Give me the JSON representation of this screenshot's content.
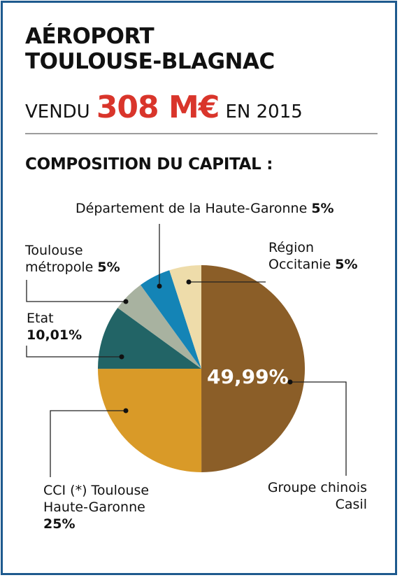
{
  "header": {
    "title_line1": "AÉROPORT",
    "title_line2": "TOULOUSE-BLAGNAC",
    "sold_prefix": "VENDU",
    "sold_amount": "308 M€",
    "sold_suffix": "EN 2015",
    "subtitle": "COMPOSITION DU CAPITAL :"
  },
  "colors": {
    "frame": "#1e5a8e",
    "accent": "#d9352b"
  },
  "chart_data": {
    "type": "pie",
    "title": "COMPOSITION DU CAPITAL :",
    "slices": [
      {
        "label_lines": [
          "Groupe chinois",
          "Casil"
        ],
        "value_text": "49,99%",
        "value": 49.99,
        "color": "#8b5e28"
      },
      {
        "label_lines": [
          "CCI (*) Toulouse",
          "Haute-Garonne"
        ],
        "value_text": "25%",
        "value": 25,
        "color": "#d99a28"
      },
      {
        "label_lines": [
          "Etat"
        ],
        "value_text": "10,01%",
        "value": 10.01,
        "color": "#226466"
      },
      {
        "label_lines": [
          "Toulouse",
          "métropole"
        ],
        "value_text": "5%",
        "value": 5,
        "color": "#a8b2a0"
      },
      {
        "label_lines": [
          "Département de la Haute-Garonne"
        ],
        "value_text": "5%",
        "value": 5,
        "color": "#1484b6"
      },
      {
        "label_lines": [
          "Région",
          "Occitanie"
        ],
        "value_text": "5%",
        "value": 5,
        "color": "#eedcaa"
      }
    ]
  }
}
